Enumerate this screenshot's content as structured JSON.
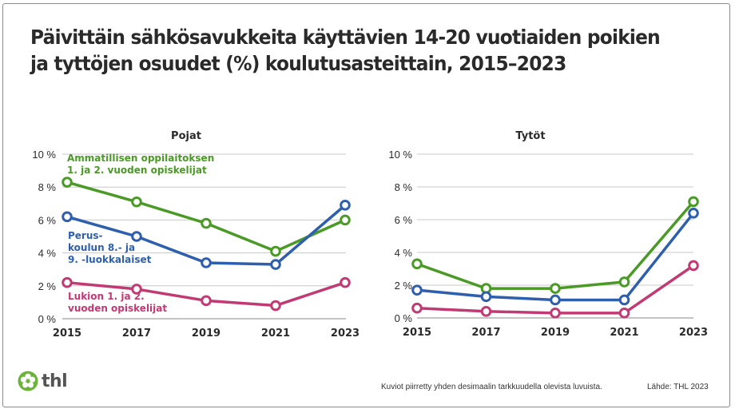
{
  "title": "Päivittäin sähkösavukkeita käyttävien 14-20 vuotiaiden poikien ja tyttöjen osuudet (%) koulutusasteittain, 2015–2023",
  "colors": {
    "ammatillinen": "#4a9a26",
    "peruskoulu": "#2e5fae",
    "lukio": "#c23a73",
    "grid": "#c8c8c8",
    "axis": "#888888",
    "text": "#2a2a2a"
  },
  "chart_data": [
    {
      "type": "line",
      "title": "Pojat",
      "xlabel": "",
      "ylabel": "",
      "categories": [
        "2015",
        "2017",
        "2019",
        "2021",
        "2023"
      ],
      "ylim": [
        0,
        10
      ],
      "yticks": [
        "0 %",
        "2 %",
        "4 %",
        "6 %",
        "8 %",
        "10 %"
      ],
      "grid": true,
      "series": [
        {
          "name": "Ammatillisen oppilaitoksen 1.  ja 2. vuoden opiskelijat",
          "label_lines": [
            "Ammatillisen oppilaitoksen",
            "1.  ja 2. vuoden opiskelijat"
          ],
          "color_key": "ammatillinen",
          "values": [
            8.3,
            7.1,
            5.8,
            4.1,
            6.0
          ]
        },
        {
          "name": "Perus-koulun 8.- ja 9. -luokkalaiset",
          "label_lines": [
            "Perus-",
            "koulun 8.- ja",
            "9. -luokkalaiset"
          ],
          "color_key": "peruskoulu",
          "values": [
            6.2,
            5.0,
            3.4,
            3.3,
            6.9
          ]
        },
        {
          "name": "Lukion 1. ja 2. vuoden opiskelijat",
          "label_lines": [
            "Lukion 1. ja 2.",
            "vuoden opiskelijat"
          ],
          "color_key": "lukio",
          "values": [
            2.2,
            1.8,
            1.1,
            0.8,
            2.2
          ]
        }
      ]
    },
    {
      "type": "line",
      "title": "Tytöt",
      "xlabel": "",
      "ylabel": "",
      "categories": [
        "2015",
        "2017",
        "2019",
        "2021",
        "2023"
      ],
      "ylim": [
        0,
        10
      ],
      "yticks": [
        "0 %",
        "2 %",
        "4 %",
        "6 %",
        "8 %",
        "10 %"
      ],
      "grid": true,
      "series": [
        {
          "name": "Ammatillisen oppilaitoksen 1. ja 2. vuoden opiskelijat",
          "color_key": "ammatillinen",
          "values": [
            3.3,
            1.8,
            1.8,
            2.2,
            7.1
          ]
        },
        {
          "name": "Peruskoulun 8.- ja 9. -luokkalaiset",
          "color_key": "peruskoulu",
          "values": [
            1.7,
            1.3,
            1.1,
            1.1,
            6.4
          ]
        },
        {
          "name": "Lukion 1. ja 2. vuoden opiskelijat",
          "color_key": "lukio",
          "values": [
            0.6,
            0.4,
            0.3,
            0.3,
            3.2
          ]
        }
      ]
    }
  ],
  "footer": {
    "logo_text": "thl",
    "note": "Kuviot piirretty yhden desimaalin tarkkuudella olevista luvuista.",
    "source": "Lähde: THL 2023"
  }
}
